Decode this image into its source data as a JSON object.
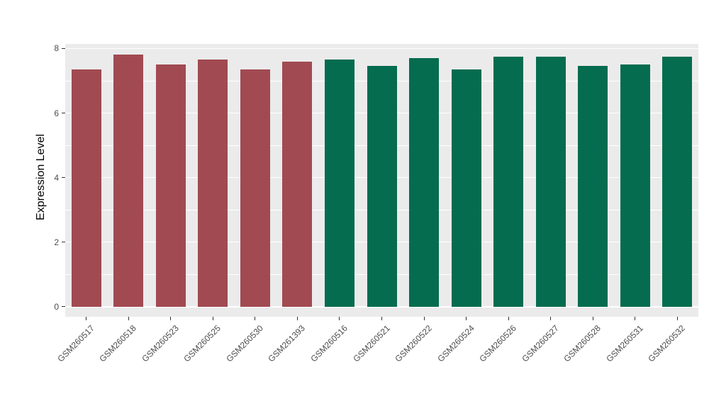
{
  "chart_data": {
    "type": "bar",
    "title": "",
    "xlabel": "",
    "ylabel": "Expression Level",
    "ylim": [
      0,
      8
    ],
    "yticks_major": [
      0,
      2,
      4,
      6,
      8
    ],
    "yticks_minor": [
      1,
      3,
      5,
      7
    ],
    "grid": true,
    "legend": "none",
    "panel_bg": "#EBEBEB",
    "grid_color": "#FFFFFF",
    "categories": [
      "GSM260517",
      "GSM260518",
      "GSM260523",
      "GSM260525",
      "GSM260530",
      "GSM261393",
      "GSM260516",
      "GSM260521",
      "GSM260522",
      "GSM260524",
      "GSM260526",
      "GSM260527",
      "GSM260528",
      "GSM260531",
      "GSM260532"
    ],
    "values": [
      7.35,
      7.8,
      7.5,
      7.65,
      7.35,
      7.6,
      7.65,
      7.45,
      7.7,
      7.35,
      7.75,
      7.75,
      7.45,
      7.5,
      7.75
    ],
    "colors": [
      "#A14A52",
      "#A14A52",
      "#A14A52",
      "#A14A52",
      "#A14A52",
      "#A14A52",
      "#056C4F",
      "#056C4F",
      "#056C4F",
      "#056C4F",
      "#056C4F",
      "#056C4F",
      "#056C4F",
      "#056C4F",
      "#056C4F"
    ],
    "palette": {
      "group_left": "#A14A52",
      "group_right": "#056C4F"
    }
  }
}
